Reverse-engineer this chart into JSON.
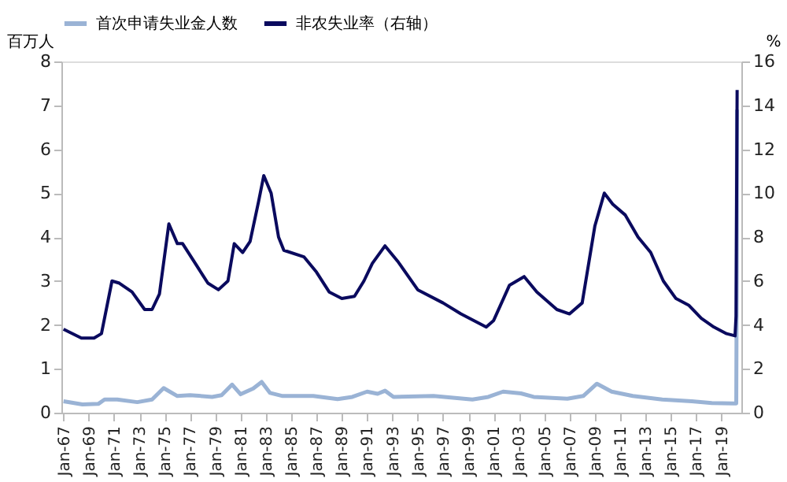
{
  "chart_data": {
    "type": "line",
    "ylabel": "百万人",
    "y2label": "%",
    "legend": "top",
    "grid": false,
    "xlim": [
      "1966-11",
      "2020-08"
    ],
    "xticks": [
      {
        "value": "1967-01",
        "label": "Jan-67"
      },
      {
        "value": "1969-01",
        "label": "Jan-69"
      },
      {
        "value": "1971-01",
        "label": "Jan-71"
      },
      {
        "value": "1973-01",
        "label": "Jan-73"
      },
      {
        "value": "1975-01",
        "label": "Jan-75"
      },
      {
        "value": "1977-01",
        "label": "Jan-77"
      },
      {
        "value": "1979-01",
        "label": "Jan-79"
      },
      {
        "value": "1981-01",
        "label": "Jan-81"
      },
      {
        "value": "1983-01",
        "label": "Jan-83"
      },
      {
        "value": "1985-01",
        "label": "Jan-85"
      },
      {
        "value": "1987-01",
        "label": "Jan-87"
      },
      {
        "value": "1989-01",
        "label": "Jan-89"
      },
      {
        "value": "1991-01",
        "label": "Jan-91"
      },
      {
        "value": "1993-01",
        "label": "Jan-93"
      },
      {
        "value": "1995-01",
        "label": "Jan-95"
      },
      {
        "value": "1997-01",
        "label": "Jan-97"
      },
      {
        "value": "1999-01",
        "label": "Jan-99"
      },
      {
        "value": "2001-01",
        "label": "Jan-01"
      },
      {
        "value": "2003-01",
        "label": "Jan-03"
      },
      {
        "value": "2005-01",
        "label": "Jan-05"
      },
      {
        "value": "2007-01",
        "label": "Jan-07"
      },
      {
        "value": "2009-01",
        "label": "Jan-09"
      },
      {
        "value": "2011-01",
        "label": "Jan-11"
      },
      {
        "value": "2013-01",
        "label": "Jan-13"
      },
      {
        "value": "2015-01",
        "label": "Jan-15"
      },
      {
        "value": "2017-01",
        "label": "Jan-17"
      },
      {
        "value": "2019-01",
        "label": "Jan-19"
      }
    ],
    "ylim": [
      0,
      8
    ],
    "yticks": [
      0,
      1,
      2,
      3,
      4,
      5,
      6,
      7,
      8
    ],
    "y2lim": [
      0,
      16
    ],
    "y2ticks": [
      0,
      2,
      4,
      6,
      8,
      10,
      12,
      14,
      16
    ],
    "series": [
      {
        "name": "首次申请失业金人数",
        "color": "#9ab3d5",
        "x": [
          "1967-01",
          "1968-07",
          "1969-10",
          "1970-04",
          "1971-04",
          "1972-11",
          "1974-01",
          "1974-12",
          "1976-01",
          "1977-01",
          "1978-10",
          "1979-07",
          "1980-05",
          "1981-01",
          "1982-01",
          "1982-09",
          "1983-05",
          "1984-05",
          "1986-10",
          "1988-09",
          "1989-11",
          "1991-01",
          "1991-11",
          "1992-06",
          "1993-02",
          "1996-04",
          "1999-05",
          "2000-08",
          "2001-10",
          "2003-03",
          "2004-03",
          "2006-11",
          "2008-02",
          "2009-03",
          "2010-05",
          "2012-01",
          "2014-05",
          "2016-09",
          "2018-04",
          "2019-12",
          "2020-03-07",
          "2020-03-21",
          "2020-03-28"
        ],
        "values": [
          0.26,
          0.19,
          0.2,
          0.3,
          0.3,
          0.24,
          0.3,
          0.56,
          0.38,
          0.4,
          0.36,
          0.4,
          0.64,
          0.42,
          0.55,
          0.7,
          0.45,
          0.38,
          0.38,
          0.31,
          0.36,
          0.48,
          0.43,
          0.5,
          0.36,
          0.38,
          0.3,
          0.36,
          0.48,
          0.44,
          0.36,
          0.32,
          0.38,
          0.66,
          0.48,
          0.38,
          0.3,
          0.26,
          0.22,
          0.21,
          0.21,
          3.3,
          6.9
        ]
      },
      {
        "name": "非农失业率（右轴）",
        "color": "#0a0a5e",
        "axis": "y2",
        "x": [
          "1967-01",
          "1968-06",
          "1969-06",
          "1970-01",
          "1970-11",
          "1971-06",
          "1972-06",
          "1973-06",
          "1974-01",
          "1974-08",
          "1975-05",
          "1976-01",
          "1976-06",
          "1977-06",
          "1978-06",
          "1979-04",
          "1980-01",
          "1980-07",
          "1981-03",
          "1981-10",
          "1982-06",
          "1982-11",
          "1983-06",
          "1984-01",
          "1984-06",
          "1986-01",
          "1987-01",
          "1988-01",
          "1989-01",
          "1990-01",
          "1990-10",
          "1991-06",
          "1992-06",
          "1993-06",
          "1995-01",
          "1997-01",
          "1998-06",
          "2000-06",
          "2001-01",
          "2002-04",
          "2003-06",
          "2004-06",
          "2006-01",
          "2007-01",
          "2008-01",
          "2009-01",
          "2009-10",
          "2010-06",
          "2011-06",
          "2012-06",
          "2013-06",
          "2014-06",
          "2015-06",
          "2016-06",
          "2017-06",
          "2018-06",
          "2019-06",
          "2020-02",
          "2020-03",
          "2020-04"
        ],
        "values": [
          3.8,
          3.4,
          3.4,
          3.6,
          6.0,
          5.9,
          5.5,
          4.7,
          4.7,
          5.4,
          8.6,
          7.7,
          7.7,
          6.8,
          5.9,
          5.6,
          6.0,
          7.7,
          7.3,
          7.8,
          9.6,
          10.8,
          10.0,
          8.0,
          7.4,
          7.1,
          6.4,
          5.5,
          5.2,
          5.3,
          6.0,
          6.8,
          7.6,
          6.9,
          5.6,
          5.0,
          4.5,
          3.9,
          4.2,
          5.8,
          6.2,
          5.5,
          4.7,
          4.5,
          5.0,
          8.5,
          10.0,
          9.5,
          9.0,
          8.0,
          7.3,
          6.0,
          5.2,
          4.9,
          4.3,
          3.9,
          3.6,
          3.5,
          4.4,
          14.7
        ]
      }
    ]
  }
}
